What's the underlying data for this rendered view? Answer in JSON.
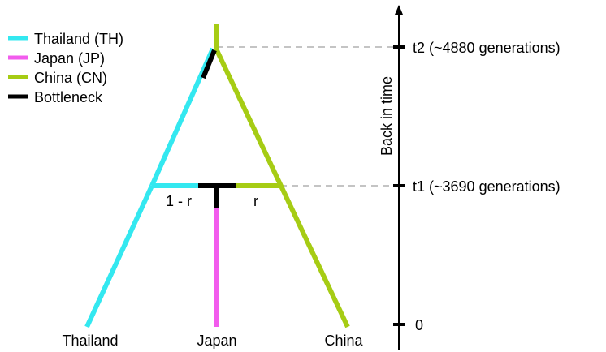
{
  "legend": {
    "items": [
      {
        "label": "Thailand (TH)",
        "color": "#33e8f0"
      },
      {
        "label": "Japan (JP)",
        "color": "#f25ced"
      },
      {
        "label": "China (CN)",
        "color": "#a6cc14"
      },
      {
        "label": "Bottleneck",
        "color": "#000000"
      }
    ]
  },
  "colors": {
    "thailand": "#33e8f0",
    "japan": "#f25ced",
    "china": "#a6cc14",
    "bottleneck": "#000000",
    "dashed": "#b0b0b0"
  },
  "axis": {
    "title": "Back in time",
    "ticks": [
      {
        "label": "t2 (~4880 generations)"
      },
      {
        "label": "t1 (~3690 generations)"
      },
      {
        "label": "0"
      }
    ]
  },
  "admixture": {
    "left_label": "1 - r",
    "right_label": "r"
  },
  "populations": {
    "thailand": "Thailand",
    "japan": "Japan",
    "china": "China"
  }
}
